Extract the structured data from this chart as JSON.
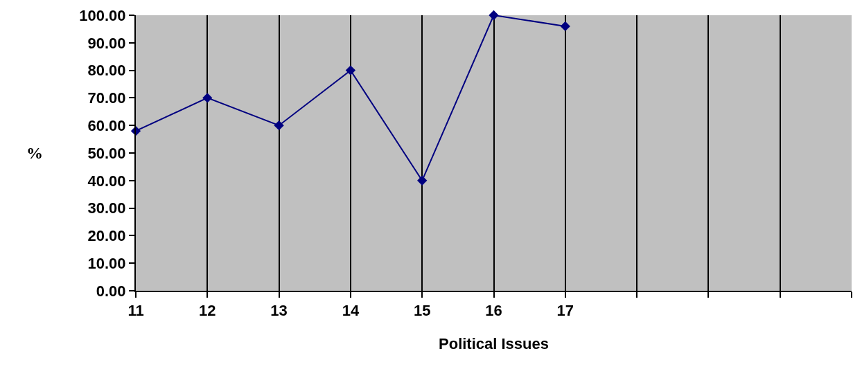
{
  "chart_data": {
    "type": "line",
    "xlabel": "Political Issues",
    "ylabel": "%",
    "categories": [
      "11",
      "12",
      "13",
      "14",
      "15",
      "16",
      "17",
      null,
      null,
      null,
      null
    ],
    "series": [
      {
        "color": "#000080",
        "values": [
          58,
          70,
          60,
          80,
          40,
          100,
          96,
          null,
          null,
          null,
          null
        ]
      }
    ],
    "ylim": [
      0,
      100
    ],
    "yticks": [
      {
        "value": 0,
        "label": "0.00"
      },
      {
        "value": 10,
        "label": "10.00"
      },
      {
        "value": 20,
        "label": "20.00"
      },
      {
        "value": 30,
        "label": "30.00"
      },
      {
        "value": 40,
        "label": "40.00"
      },
      {
        "value": 50,
        "label": "50.00"
      },
      {
        "value": 60,
        "label": "60.00"
      },
      {
        "value": 70,
        "label": "70.00"
      },
      {
        "value": 80,
        "label": "80.00"
      },
      {
        "value": 90,
        "label": "90.00"
      },
      {
        "value": 100,
        "label": "100.00"
      }
    ],
    "grid": "x",
    "marker": "diamond",
    "line_style": "solid",
    "legend": false
  }
}
